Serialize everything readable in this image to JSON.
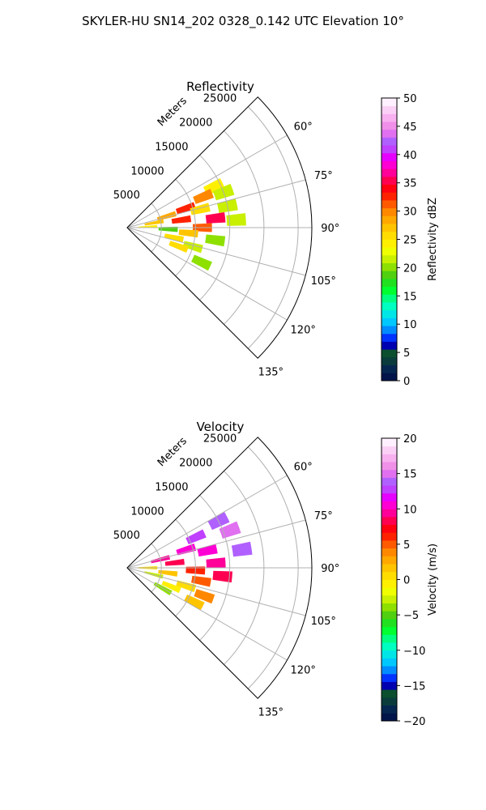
{
  "figure": {
    "suptitle": "SKYLER-HU  SN14_202  0328_0.142 UTC Elevation 10°"
  },
  "chart_data": [
    {
      "type": "heatmap",
      "projection": "polar-sector",
      "title": "Reflectivity",
      "range_axis_label": "Meters",
      "range_ticks": [
        5000,
        10000,
        15000,
        20000,
        25000
      ],
      "range_tick_labels": [
        "5000",
        "10000",
        "15000",
        "20000",
        "25000"
      ],
      "rlim": [
        0,
        27000
      ],
      "azimuth_ticks": [
        60,
        75,
        90,
        105,
        120,
        135
      ],
      "azimuth_tick_labels": [
        "60°",
        "75°",
        "90°",
        "105°",
        "120°",
        "135°"
      ],
      "azimuth_range": [
        45,
        135
      ],
      "grid": true,
      "colorbar": {
        "label": "Reflectivity dBZ",
        "range": [
          0,
          50
        ],
        "ticks": [
          0,
          5,
          10,
          15,
          20,
          25,
          30,
          35,
          40,
          45,
          50
        ],
        "tick_labels": [
          "0",
          "5",
          "10",
          "15",
          "20",
          "25",
          "30",
          "35",
          "40",
          "45",
          "50"
        ],
        "palette": [
          "#01154a",
          "#05274f",
          "#0a3c3c",
          "#0b4f2e",
          "#0000b0",
          "#0033ff",
          "#008cff",
          "#00c8ff",
          "#00e6e6",
          "#00ffc0",
          "#00ff80",
          "#00ff30",
          "#20e020",
          "#50d010",
          "#8ee000",
          "#c8f000",
          "#f0ff00",
          "#ffef00",
          "#ffdd00",
          "#ffc400",
          "#ffa800",
          "#ff8800",
          "#ff5a00",
          "#ff2200",
          "#ff0010",
          "#ff0050",
          "#ff0099",
          "#ff00d4",
          "#e600ff",
          "#c040ff",
          "#b060ff",
          "#e070f0",
          "#f090e8",
          "#f8b0f0",
          "#fbd0f6",
          "#fff0ff"
        ]
      },
      "cells": [
        {
          "az": 65,
          "r": 14000,
          "value": 24
        },
        {
          "az": 68,
          "r": 12000,
          "value": 30
        },
        {
          "az": 70,
          "r": 15000,
          "value": 22
        },
        {
          "az": 72,
          "r": 9000,
          "value": 33
        },
        {
          "az": 74,
          "r": 6000,
          "value": 28
        },
        {
          "az": 76,
          "r": 11000,
          "value": 26
        },
        {
          "az": 78,
          "r": 15000,
          "value": 21
        },
        {
          "az": 80,
          "r": 4000,
          "value": 27
        },
        {
          "az": 82,
          "r": 8000,
          "value": 32
        },
        {
          "az": 84,
          "r": 13000,
          "value": 35
        },
        {
          "az": 86,
          "r": 16000,
          "value": 22
        },
        {
          "az": 88,
          "r": 3000,
          "value": 24
        },
        {
          "az": 90,
          "r": 11000,
          "value": 31
        },
        {
          "az": 92,
          "r": 6000,
          "value": 19
        },
        {
          "az": 95,
          "r": 9000,
          "value": 27
        },
        {
          "az": 98,
          "r": 13000,
          "value": 20
        },
        {
          "az": 102,
          "r": 7000,
          "value": 25
        },
        {
          "az": 106,
          "r": 10000,
          "value": 22
        },
        {
          "az": 110,
          "r": 8000,
          "value": 26
        },
        {
          "az": 115,
          "r": 12000,
          "value": 20
        }
      ]
    },
    {
      "type": "heatmap",
      "projection": "polar-sector",
      "title": "Velocity",
      "range_axis_label": "Meters",
      "range_ticks": [
        5000,
        10000,
        15000,
        20000,
        25000
      ],
      "range_tick_labels": [
        "5000",
        "10000",
        "15000",
        "20000",
        "25000"
      ],
      "rlim": [
        0,
        27000
      ],
      "azimuth_ticks": [
        60,
        75,
        90,
        105,
        120,
        135
      ],
      "azimuth_tick_labels": [
        "60°",
        "75°",
        "90°",
        "105°",
        "120°",
        "135°"
      ],
      "azimuth_range": [
        45,
        135
      ],
      "grid": true,
      "colorbar": {
        "label": "Velocity (m/s)",
        "range": [
          -20,
          20
        ],
        "ticks": [
          -20,
          -15,
          -10,
          -5,
          0,
          5,
          10,
          15,
          20
        ],
        "tick_labels": [
          "−20",
          "−15",
          "−10",
          "−5",
          "0",
          "5",
          "10",
          "15",
          "20"
        ],
        "palette": [
          "#01154a",
          "#05274f",
          "#0a3c3c",
          "#0b4f2e",
          "#0000b0",
          "#0033ff",
          "#008cff",
          "#00c8ff",
          "#00e6e6",
          "#00ffc0",
          "#00ff80",
          "#00ff30",
          "#20e020",
          "#50d010",
          "#8ee000",
          "#c8f000",
          "#f0ff00",
          "#ffef00",
          "#ffdd00",
          "#ffc400",
          "#ffa800",
          "#ff8800",
          "#ff5a00",
          "#ff2200",
          "#ff0010",
          "#ff0050",
          "#ff0099",
          "#ff00d4",
          "#e600ff",
          "#c040ff",
          "#b060ff",
          "#e070f0",
          "#f090e8",
          "#f8b0f0",
          "#fbd0f6",
          "#fff0ff"
        ]
      },
      "cells": [
        {
          "az": 63,
          "r": 15000,
          "value": 14
        },
        {
          "az": 66,
          "r": 11000,
          "value": 13
        },
        {
          "az": 70,
          "r": 16000,
          "value": 15
        },
        {
          "az": 73,
          "r": 9000,
          "value": 11
        },
        {
          "az": 76,
          "r": 5000,
          "value": 9
        },
        {
          "az": 78,
          "r": 12000,
          "value": 10
        },
        {
          "az": 81,
          "r": 17000,
          "value": 14
        },
        {
          "az": 84,
          "r": 7000,
          "value": 8
        },
        {
          "az": 87,
          "r": 13000,
          "value": 9
        },
        {
          "az": 90,
          "r": 3000,
          "value": 1
        },
        {
          "az": 92,
          "r": 10000,
          "value": 6
        },
        {
          "az": 95,
          "r": 14000,
          "value": 8
        },
        {
          "az": 97,
          "r": 6000,
          "value": 2
        },
        {
          "az": 100,
          "r": 11000,
          "value": 5
        },
        {
          "az": 104,
          "r": 4000,
          "value": -3
        },
        {
          "az": 107,
          "r": 9000,
          "value": 1
        },
        {
          "az": 110,
          "r": 12000,
          "value": 4
        },
        {
          "az": 113,
          "r": 7000,
          "value": -1
        },
        {
          "az": 117,
          "r": 11000,
          "value": 2
        },
        {
          "az": 120,
          "r": 6000,
          "value": -4
        }
      ]
    }
  ]
}
